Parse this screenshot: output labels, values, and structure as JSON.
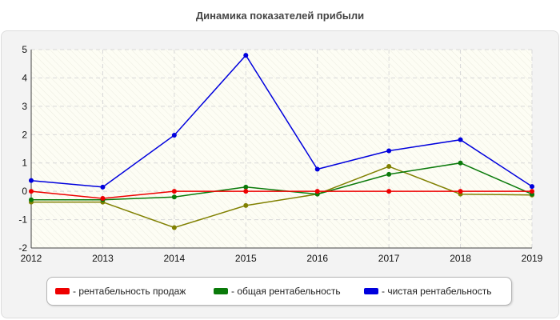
{
  "colors": {
    "sales": "#ee0000",
    "total": "#0a7a0a",
    "net": "#0000dd",
    "extra": "#808000"
  },
  "chart_data": {
    "type": "line",
    "title": "Динамика показателей прибыли",
    "x": [
      "2012",
      "2013",
      "2014",
      "2015",
      "2016",
      "2017",
      "2018",
      "2019"
    ],
    "y_ticks": [
      "5",
      "4",
      "3",
      "2",
      "1",
      "0",
      "-1",
      "-2"
    ],
    "ylim": [
      -2,
      5
    ],
    "grid": true,
    "legend_position": "bottom",
    "series": [
      {
        "name": "- рентабельность продаж",
        "color_key": "sales",
        "values": [
          0.0,
          -0.25,
          0.0,
          0.0,
          0.0,
          0.0,
          0.0,
          0.0
        ]
      },
      {
        "name": "- общая рентабельность",
        "color_key": "total",
        "values": [
          -0.3,
          -0.3,
          -0.2,
          0.15,
          -0.1,
          0.6,
          1.0,
          -0.1
        ]
      },
      {
        "name": "- чистая рентабельность",
        "color_key": "net",
        "values": [
          0.38,
          0.15,
          1.98,
          4.8,
          0.78,
          1.43,
          1.82,
          0.17
        ]
      },
      {
        "color_key": "extra",
        "values": [
          -0.38,
          -0.38,
          -1.28,
          -0.5,
          -0.1,
          0.88,
          -0.1,
          -0.13
        ]
      }
    ]
  }
}
